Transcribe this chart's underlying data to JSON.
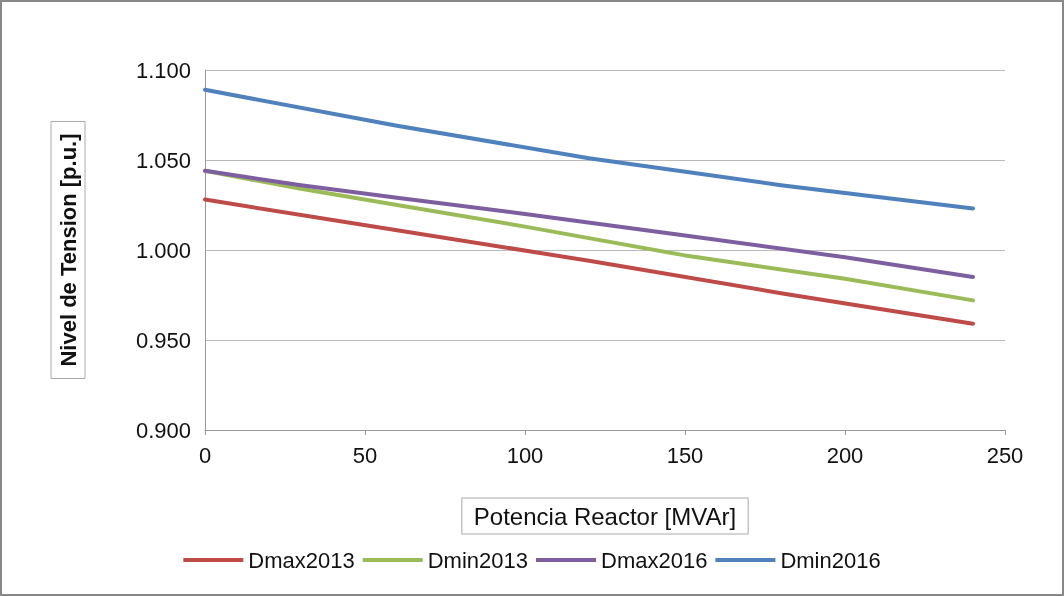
{
  "chart_data": {
    "type": "line",
    "xlabel": "Potencia Reactor [MVAr]",
    "ylabel": "Nivel de Tension [p.u.]",
    "xlim": [
      0,
      250
    ],
    "xticks": [
      0,
      50,
      100,
      150,
      200,
      250
    ],
    "ylim": [
      0.9,
      1.1
    ],
    "yticks": [
      {
        "value": 0.9,
        "label": "0.900"
      },
      {
        "value": 0.95,
        "label": "0.950"
      },
      {
        "value": 1.0,
        "label": "1.000"
      },
      {
        "value": 1.05,
        "label": "1.050"
      },
      {
        "value": 1.1,
        "label": "1.100"
      }
    ],
    "grid": "y",
    "legend": "bottom",
    "marker": "none",
    "line_style": "solid",
    "series": [
      {
        "name": "Dmax2013",
        "color": "#be4b48",
        "x": [
          0,
          60,
          120,
          180,
          240
        ],
        "values": [
          1.028,
          1.011,
          0.994,
          0.976,
          0.959
        ]
      },
      {
        "name": "Dmin2013",
        "color": "#9bbb59",
        "x": [
          0,
          30,
          60,
          100,
          150,
          200,
          240
        ],
        "values": [
          1.044,
          1.034,
          1.025,
          1.013,
          0.997,
          0.984,
          0.972
        ]
      },
      {
        "name": "Dmax2016",
        "color": "#7d5fa0",
        "x": [
          0,
          30,
          60,
          100,
          150,
          200,
          240
        ],
        "values": [
          1.044,
          1.036,
          1.029,
          1.02,
          1.008,
          0.996,
          0.985
        ]
      },
      {
        "name": "Dmin2016",
        "color": "#4f81bd",
        "x": [
          0,
          60,
          120,
          180,
          240
        ],
        "values": [
          1.089,
          1.069,
          1.051,
          1.036,
          1.023
        ]
      }
    ]
  }
}
